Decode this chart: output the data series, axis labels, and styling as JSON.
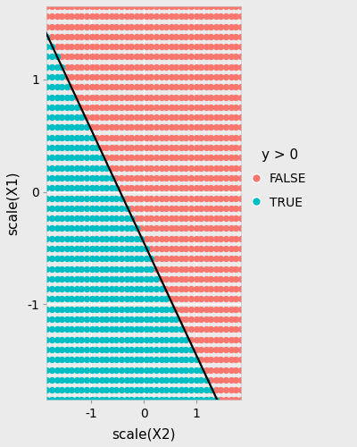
{
  "title": "",
  "xlabel": "scale(X2)",
  "ylabel": "scale(X1)",
  "xlim": [
    -1.85,
    1.85
  ],
  "ylim": [
    -1.85,
    1.65
  ],
  "x_ticks": [
    -1,
    0,
    1
  ],
  "y_ticks": [
    -1,
    0,
    1
  ],
  "color_false": "#F8766D",
  "color_true": "#00BFC4",
  "background_color": "#EBEBEB",
  "outer_background": "#EBEBEB",
  "grid_color": "#FFFFFF",
  "legend_title": "y > 0",
  "legend_labels": [
    "FALSE",
    "TRUE"
  ],
  "dot_size": 28,
  "dot_alpha": 1.0,
  "n_grid": 40,
  "decision_slope": -1.0,
  "decision_intercept": -0.45,
  "line_color": "#000000",
  "line_width": 1.6
}
